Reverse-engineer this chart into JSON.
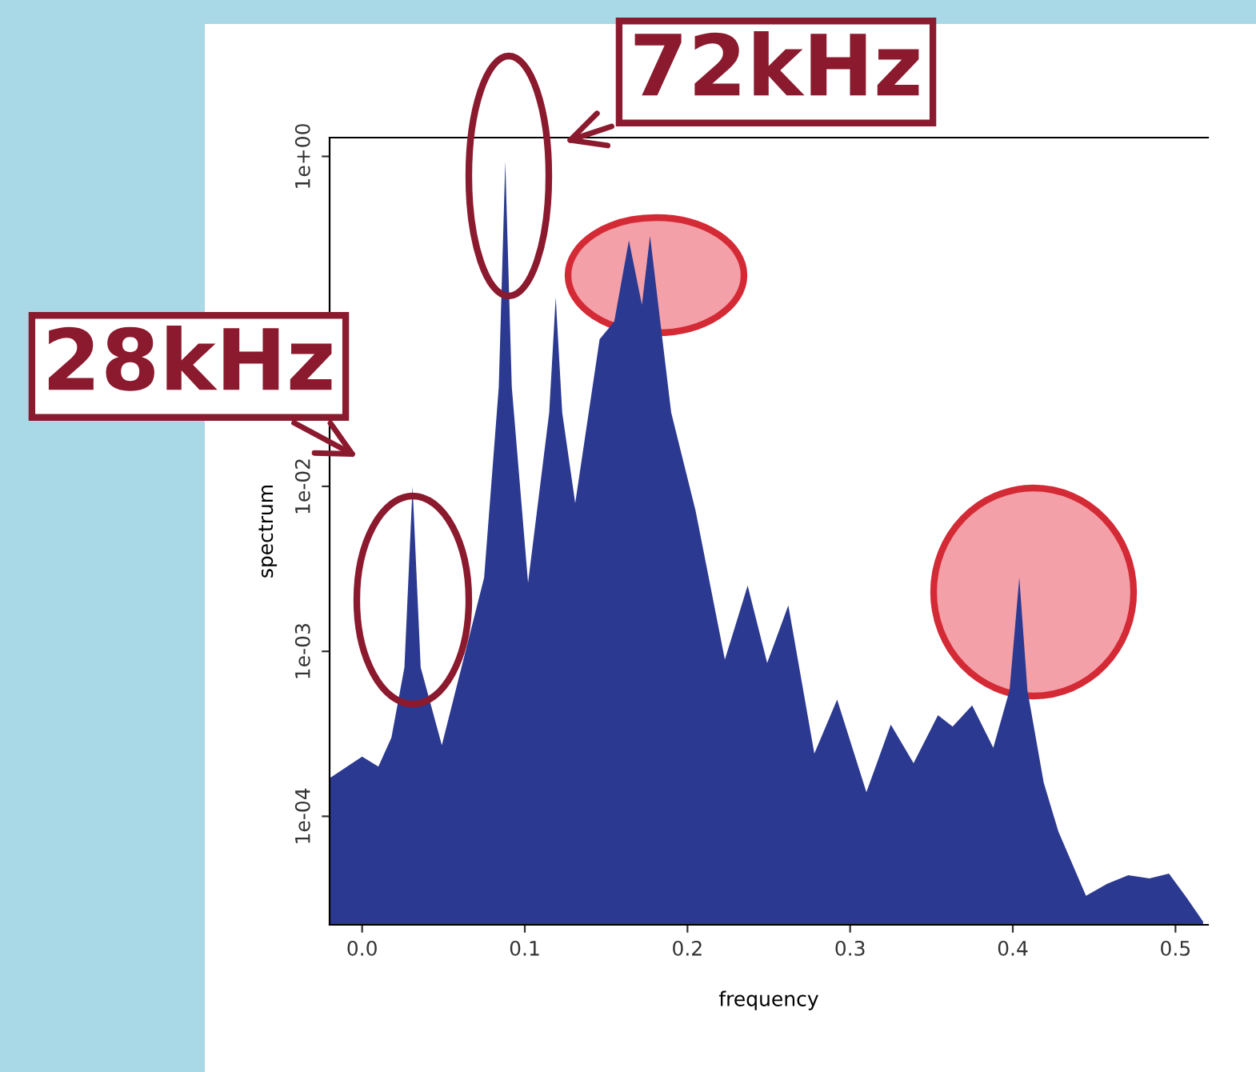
{
  "chart_data": {
    "type": "area",
    "xlabel": "frequency",
    "ylabel": "spectrum",
    "x": [
      -0.02,
      0.0,
      0.01,
      0.018,
      0.026,
      0.031,
      0.036,
      0.049,
      0.075,
      0.084,
      0.088,
      0.092,
      0.102,
      0.115,
      0.119,
      0.123,
      0.131,
      0.146,
      0.155,
      0.164,
      0.172,
      0.177,
      0.183,
      0.19,
      0.205,
      0.223,
      0.237,
      0.249,
      0.262,
      0.278,
      0.292,
      0.31,
      0.325,
      0.339,
      0.354,
      0.363,
      0.375,
      0.388,
      0.398,
      0.404,
      0.409,
      0.419,
      0.428,
      0.445,
      0.458,
      0.471,
      0.484,
      0.496,
      0.507,
      0.517
    ],
    "series": [
      {
        "color": "#2b3990",
        "values": [
          0.00017,
          0.00023,
          0.0002,
          0.0003,
          0.0008,
          0.01,
          0.0008,
          0.00027,
          0.0028,
          0.04,
          0.93,
          0.04,
          0.0026,
          0.028,
          0.14,
          0.028,
          0.0079,
          0.078,
          0.1,
          0.31,
          0.126,
          0.33,
          0.105,
          0.028,
          0.0071,
          0.00089,
          0.0025,
          0.00085,
          0.0019,
          0.00024,
          0.00051,
          0.00014,
          0.00036,
          0.00021,
          0.00041,
          0.00035,
          0.00047,
          0.00026,
          0.00058,
          0.0028,
          0.00058,
          0.00016,
          8.1e-05,
          3.3e-05,
          3.9e-05,
          4.4e-05,
          4.2e-05,
          4.5e-05,
          3.2e-05,
          2.3e-05
        ]
      }
    ],
    "log": "y",
    "xlim": [
      -0.02,
      0.52
    ],
    "xticks": [
      {
        "value": 0,
        "label": "0.0"
      },
      0.1,
      0.2,
      0.3,
      0.4,
      0.5
    ],
    "ylim": [
      2.2e-05,
      1.3
    ],
    "yticks": [
      {
        "value": 0.0001,
        "label": "1e-04"
      },
      {
        "value": 0.001,
        "label": "1e-03"
      },
      {
        "value": 0.01,
        "label": "1e-02"
      },
      {
        "value": 1,
        "label": "1e+00"
      }
    ],
    "grid": false,
    "legend": false,
    "annotations": [
      {
        "text": "72kHz",
        "x": 0.088,
        "y": 0.93
      },
      {
        "text": "28kHz",
        "x": 0.031,
        "y": 0.01
      }
    ]
  }
}
